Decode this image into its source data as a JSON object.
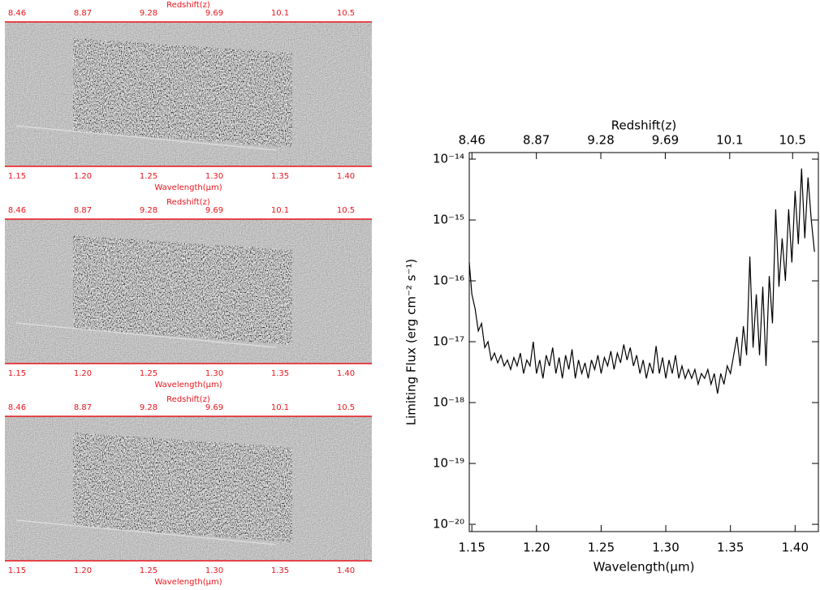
{
  "image_panels": [
    {
      "top_axis_label": "Redshift(z)",
      "top_ticks": [
        "8.46",
        "8.87",
        "9.28",
        "9.69",
        "10.1",
        "10.5"
      ],
      "bottom_ticks": [
        "1.15",
        "1.20",
        "1.25",
        "1.30",
        "1.35",
        "1.40"
      ],
      "bottom_axis_label": "Wavelength(μm)"
    },
    {
      "top_axis_label": "Redshift(z)",
      "top_ticks": [
        "8.46",
        "8.87",
        "9.28",
        "9.69",
        "10.1",
        "10.5"
      ],
      "bottom_ticks": [
        "1.15",
        "1.20",
        "1.25",
        "1.30",
        "1.35",
        "1.40"
      ],
      "bottom_axis_label": "Wavelength(μm)"
    },
    {
      "top_axis_label": "Redshift(z)",
      "top_ticks": [
        "8.46",
        "8.87",
        "9.28",
        "9.69",
        "10.1",
        "10.5"
      ],
      "bottom_ticks": [
        "1.15",
        "1.20",
        "1.25",
        "1.30",
        "1.35",
        "1.40"
      ],
      "bottom_axis_label": "Wavelength(μm)"
    }
  ],
  "chart_data": {
    "type": "line",
    "x_label": "Wavelength(μm)",
    "y_label": "Limiting Flux (erg cm⁻² s⁻¹)",
    "x2_label": "Redshift(z)",
    "color": "#000000",
    "log_y": true,
    "xlim": [
      1.148,
      1.418
    ],
    "xticks": [
      1.15,
      {
        "value": 1.2,
        "label": "1.20"
      },
      1.25,
      {
        "value": 1.3,
        "label": "1.30"
      },
      1.35,
      {
        "value": 1.4,
        "label": "1.40"
      }
    ],
    "x2lim": [
      8.443,
      10.664
    ],
    "x2ticks": [
      8.46,
      8.87,
      9.28,
      9.69,
      10.1,
      10.5
    ],
    "ylim": [
      7.6e-21,
      1.28e-14
    ],
    "yticks": [
      {
        "value": 1e-20,
        "label": "10⁻²⁰"
      },
      {
        "value": 1e-19,
        "label": "10⁻¹⁹"
      },
      {
        "value": 1e-18,
        "label": "10⁻¹⁸"
      },
      {
        "value": 1e-17,
        "label": "10⁻¹⁷"
      },
      {
        "value": 1e-16,
        "label": "10⁻¹⁶"
      },
      {
        "value": 1e-15,
        "label": "10⁻¹⁵"
      },
      {
        "value": 1e-14,
        "label": "10⁻¹⁴"
      }
    ],
    "x": [
      1.148,
      1.15,
      1.1525,
      1.155,
      1.1575,
      1.16,
      1.1625,
      1.165,
      1.1675,
      1.17,
      1.1725,
      1.175,
      1.1775,
      1.18,
      1.1825,
      1.185,
      1.1875,
      1.19,
      1.1925,
      1.195,
      1.1975,
      1.2,
      1.2025,
      1.205,
      1.2075,
      1.21,
      1.2125,
      1.215,
      1.2175,
      1.22,
      1.2225,
      1.225,
      1.2275,
      1.23,
      1.2325,
      1.235,
      1.2375,
      1.24,
      1.2425,
      1.245,
      1.2475,
      1.25,
      1.2525,
      1.255,
      1.2575,
      1.26,
      1.2625,
      1.265,
      1.2675,
      1.27,
      1.2725,
      1.275,
      1.2775,
      1.28,
      1.2825,
      1.285,
      1.2875,
      1.29,
      1.2925,
      1.295,
      1.2975,
      1.3,
      1.3025,
      1.305,
      1.3075,
      1.31,
      1.3125,
      1.315,
      1.3175,
      1.32,
      1.3225,
      1.325,
      1.3275,
      1.33,
      1.3325,
      1.335,
      1.3375,
      1.34,
      1.3425,
      1.345,
      1.3475,
      1.35,
      1.3525,
      1.355,
      1.3575,
      1.36,
      1.3625,
      1.365,
      1.3675,
      1.37,
      1.3725,
      1.375,
      1.3775,
      1.38,
      1.3825,
      1.385,
      1.3875,
      1.39,
      1.3925,
      1.395,
      1.3975,
      1.4,
      1.4025,
      1.405,
      1.4075,
      1.41,
      1.4125,
      1.415
    ],
    "values": [
      2e-16,
      6e-17,
      3.5e-17,
      1.5e-17,
      2e-17,
      8e-18,
      1e-17,
      5e-18,
      6.5e-18,
      4.5e-18,
      6e-18,
      4e-18,
      5e-18,
      3.5e-18,
      5.5e-18,
      4e-18,
      6.5e-18,
      3e-18,
      5e-18,
      4e-18,
      1e-17,
      3e-18,
      5e-18,
      2.5e-18,
      6e-18,
      4e-18,
      8e-18,
      3e-18,
      5.5e-18,
      2.5e-18,
      6e-18,
      3.5e-18,
      7.5e-18,
      2.5e-18,
      5e-18,
      3e-18,
      4.5e-18,
      2.5e-18,
      5e-18,
      3.5e-18,
      6e-18,
      3e-18,
      5.5e-18,
      4e-18,
      7e-18,
      3.5e-18,
      6.5e-18,
      4.5e-18,
      9e-18,
      5e-18,
      8e-18,
      4e-18,
      6e-18,
      3e-18,
      5e-18,
      2.5e-18,
      4.5e-18,
      3e-18,
      8.5e-18,
      3e-18,
      5.5e-18,
      2.5e-18,
      5e-18,
      3e-18,
      6e-18,
      2.5e-18,
      4e-18,
      2.5e-18,
      3.5e-18,
      2.5e-18,
      3.5e-18,
      2e-18,
      3e-18,
      2.5e-18,
      3.5e-18,
      2e-18,
      3e-18,
      1.4e-18,
      3e-18,
      2e-18,
      4e-18,
      3e-18,
      6e-18,
      1.2e-17,
      4e-18,
      1.8e-17,
      6e-18,
      2.5e-16,
      8e-18,
      6e-17,
      6e-18,
      8e-17,
      4e-18,
      1.2e-16,
      2e-17,
      1.5e-15,
      8e-17,
      5e-16,
      1e-16,
      1.5e-15,
      2e-16,
      3e-15,
      4e-16,
      7e-15,
      5e-16,
      5e-15,
      1e-15,
      3e-16
    ]
  }
}
